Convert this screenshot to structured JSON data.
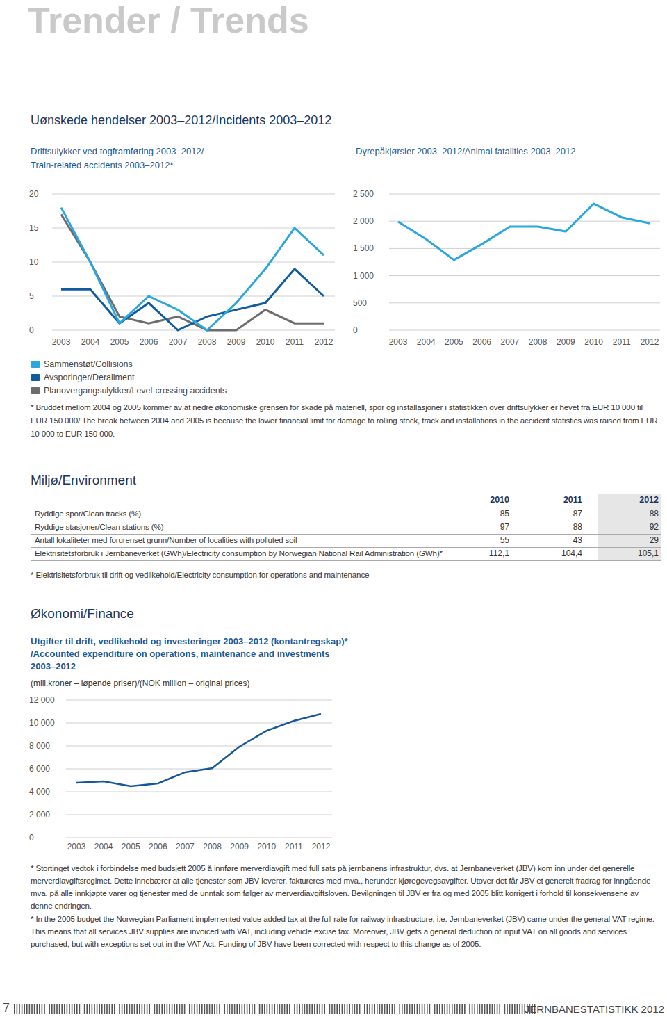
{
  "page": {
    "title": "Trender / Trends",
    "page_number": "7",
    "publication": "JERNBANESTATISTIKK 2012"
  },
  "incidents": {
    "heading": "Uønskede hendelser 2003–2012/Incidents 2003–2012",
    "footnote": "* Bruddet mellom 2004 og 2005 kommer av at nedre økonomiske grensen for skade på materiell, spor og installasjoner i statistikken over driftsulykker er hevet fra EUR 10 000 til EUR 150 000/ The break between 2004 and 2005 is because the lower financial limit for damage to rolling stock, track and installations in the accident statistics was raised from EUR 10 000 to EUR 150 000."
  },
  "environment": {
    "heading": "Miljø/Environment",
    "table": {
      "columns": [
        "2010",
        "2011",
        "2012"
      ],
      "rows": [
        {
          "label": "Ryddige spor/Clean tracks (%)",
          "values": [
            "85",
            "87",
            "88"
          ]
        },
        {
          "label": "Ryddige stasjoner/Clean stations (%)",
          "values": [
            "97",
            "88",
            "92"
          ]
        },
        {
          "label": "Antall lokaliteter med forurenset grunn/Number of localities with polluted soil",
          "values": [
            "55",
            "43",
            "29"
          ]
        },
        {
          "label": "Elektrisitetsforbruk i Jernbaneverket (GWh)/Electricity consumption by Norwegian National Rail Administration (GWh)*",
          "values": [
            "112,1",
            "104,4",
            "105,1"
          ]
        }
      ]
    },
    "footnote": "* Elektrisitetsforbruk til drift og vedlikehold/Electricity consumption for operations and maintenance"
  },
  "finance": {
    "heading": "Økonomi/Finance",
    "footnotes": [
      "* Stortinget vedtok i forbindelse med budsjett 2005 å innføre merverdiavgift med full sats på jernbanens infrastruktur, dvs. at Jernbaneverket (JBV) kom inn under det generelle merverdiavgiftsregimet. Dette innebærer at alle tjenester som JBV leverer, faktureres med mva., herunder kjøregevegsavgifter. Utover det får JBV et generelt fradrag for inngående mva. på alle innkjøpte varer og tjenester med de unntak som følger av merverdiavgiftsloven. Bevilgningen til JBV er fra og med 2005 blitt korrigert i forhold til konsekvensene av denne endringen.",
      "* In the 2005 budget the Norwegian Parliament implemented value added tax at the full rate for railway infrastructure, i.e. Jernbaneverket (JBV) came under the general VAT regime. This means that all services JBV supplies are invoiced with VAT, including vehicle excise tax. Moreover, JBV gets a general deduction of input VAT on all goods and services purchased, but with exceptions set out in the VAT Act. Funding of JBV have been corrected with respect to this change as of 2005."
    ]
  },
  "chart_data": [
    {
      "type": "line",
      "title": "Driftsulykker ved togframføring 2003–2012/\nTrain-related accidents 2003–2012*",
      "categories": [
        "2003",
        "2004",
        "2005",
        "2006",
        "2007",
        "2008",
        "2009",
        "2010",
        "2011",
        "2012"
      ],
      "series": [
        {
          "name": "Sammenstøt/Collisions",
          "color": "#2aa7df",
          "values": [
            18,
            10,
            1,
            5,
            3,
            0,
            4,
            9,
            15,
            11
          ]
        },
        {
          "name": "Avsporinger/Derailment",
          "color": "#0f5b9e",
          "values": [
            6,
            6,
            1,
            4,
            0,
            2,
            3,
            4,
            9,
            5
          ]
        },
        {
          "name": "Planovergangsulykker/Level-crossing accidents",
          "color": "#6d6d6d",
          "values": [
            17,
            10,
            2,
            1,
            2,
            0,
            0,
            3,
            1,
            1
          ]
        }
      ],
      "ylim": [
        0,
        20
      ],
      "yticks": [
        0,
        5,
        10,
        15,
        20
      ],
      "grid": true,
      "legend": "bottom"
    },
    {
      "type": "line",
      "title": "Dyrepåkjørsler 2003–2012/Animal fatalities 2003–2012",
      "categories": [
        "2003",
        "2004",
        "2005",
        "2006",
        "2007",
        "2008",
        "2009",
        "2010",
        "2011",
        "2012"
      ],
      "values": [
        1990,
        1670,
        1290,
        1580,
        1900,
        1900,
        1810,
        2320,
        2070,
        1960
      ],
      "color": "#2aa7df",
      "ylim": [
        0,
        2500
      ],
      "yticks": [
        0,
        500,
        {
          "value": 1000,
          "label": "1 000"
        },
        {
          "value": 1500,
          "label": "1 500"
        },
        {
          "value": 2000,
          "label": "2 000"
        },
        {
          "value": 2500,
          "label": "2 500"
        }
      ],
      "grid": true
    },
    {
      "type": "line",
      "title": "Utgifter til drift, vedlikehold og investeringer 2003–2012 (kontantregskap)*\n/Accounted expenditure on operations, maintenance and investments\n2003–2012",
      "subtitle": "(mill.kroner – løpende priser)/(NOK million – original prices)",
      "categories": [
        "2003",
        "2004",
        "2005",
        "2006",
        "2007",
        "2008",
        "2009",
        "2010",
        "2011",
        "2012"
      ],
      "values": [
        4790,
        4910,
        4480,
        4730,
        5700,
        6060,
        7940,
        9330,
        10180,
        10790
      ],
      "color": "#14589a",
      "ylim": [
        0,
        12000
      ],
      "yticks": [
        0,
        {
          "value": 2000,
          "label": "2 000"
        },
        {
          "value": 4000,
          "label": "4 000"
        },
        {
          "value": 6000,
          "label": "6 000"
        },
        {
          "value": 8000,
          "label": "8 000"
        },
        {
          "value": 10000,
          "label": "10 000"
        },
        {
          "value": 12000,
          "label": "12 000"
        }
      ],
      "grid": true
    }
  ]
}
